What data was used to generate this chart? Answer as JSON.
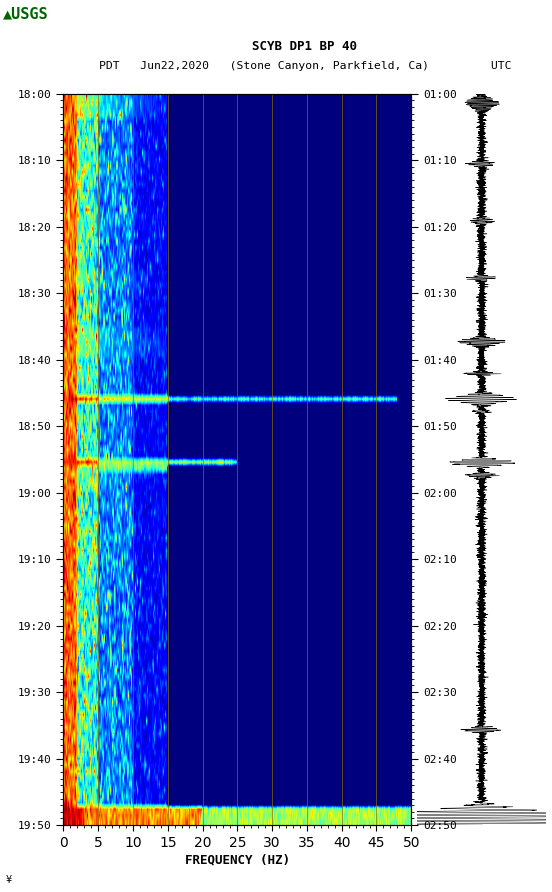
{
  "title_line1": "SCYB DP1 BP 40",
  "title_line2": "PDT   Jun22,2020   (Stone Canyon, Parkfield, Ca)         UTC",
  "xlabel": "FREQUENCY (HZ)",
  "freq_min": 0,
  "freq_max": 50,
  "freq_ticks": [
    0,
    5,
    10,
    15,
    20,
    25,
    30,
    35,
    40,
    45,
    50
  ],
  "pdt_ticks": [
    "18:00",
    "18:10",
    "18:20",
    "18:30",
    "18:40",
    "18:50",
    "19:00",
    "19:10",
    "19:20",
    "19:30",
    "19:40",
    "19:50"
  ],
  "utc_ticks": [
    "01:00",
    "01:10",
    "01:20",
    "01:30",
    "01:40",
    "01:50",
    "02:00",
    "02:10",
    "02:20",
    "02:30",
    "02:40",
    "02:50"
  ],
  "background_color": "#ffffff",
  "spectrogram_bg": "#00008B",
  "grid_color": "#8B7000",
  "vertical_lines_freq": [
    5,
    10,
    15,
    20,
    25,
    30,
    35,
    40,
    45
  ],
  "colormap": "jet",
  "n_time": 116,
  "n_freq": 500,
  "seed": 42,
  "figsize": [
    5.52,
    8.92
  ],
  "dpi": 100
}
